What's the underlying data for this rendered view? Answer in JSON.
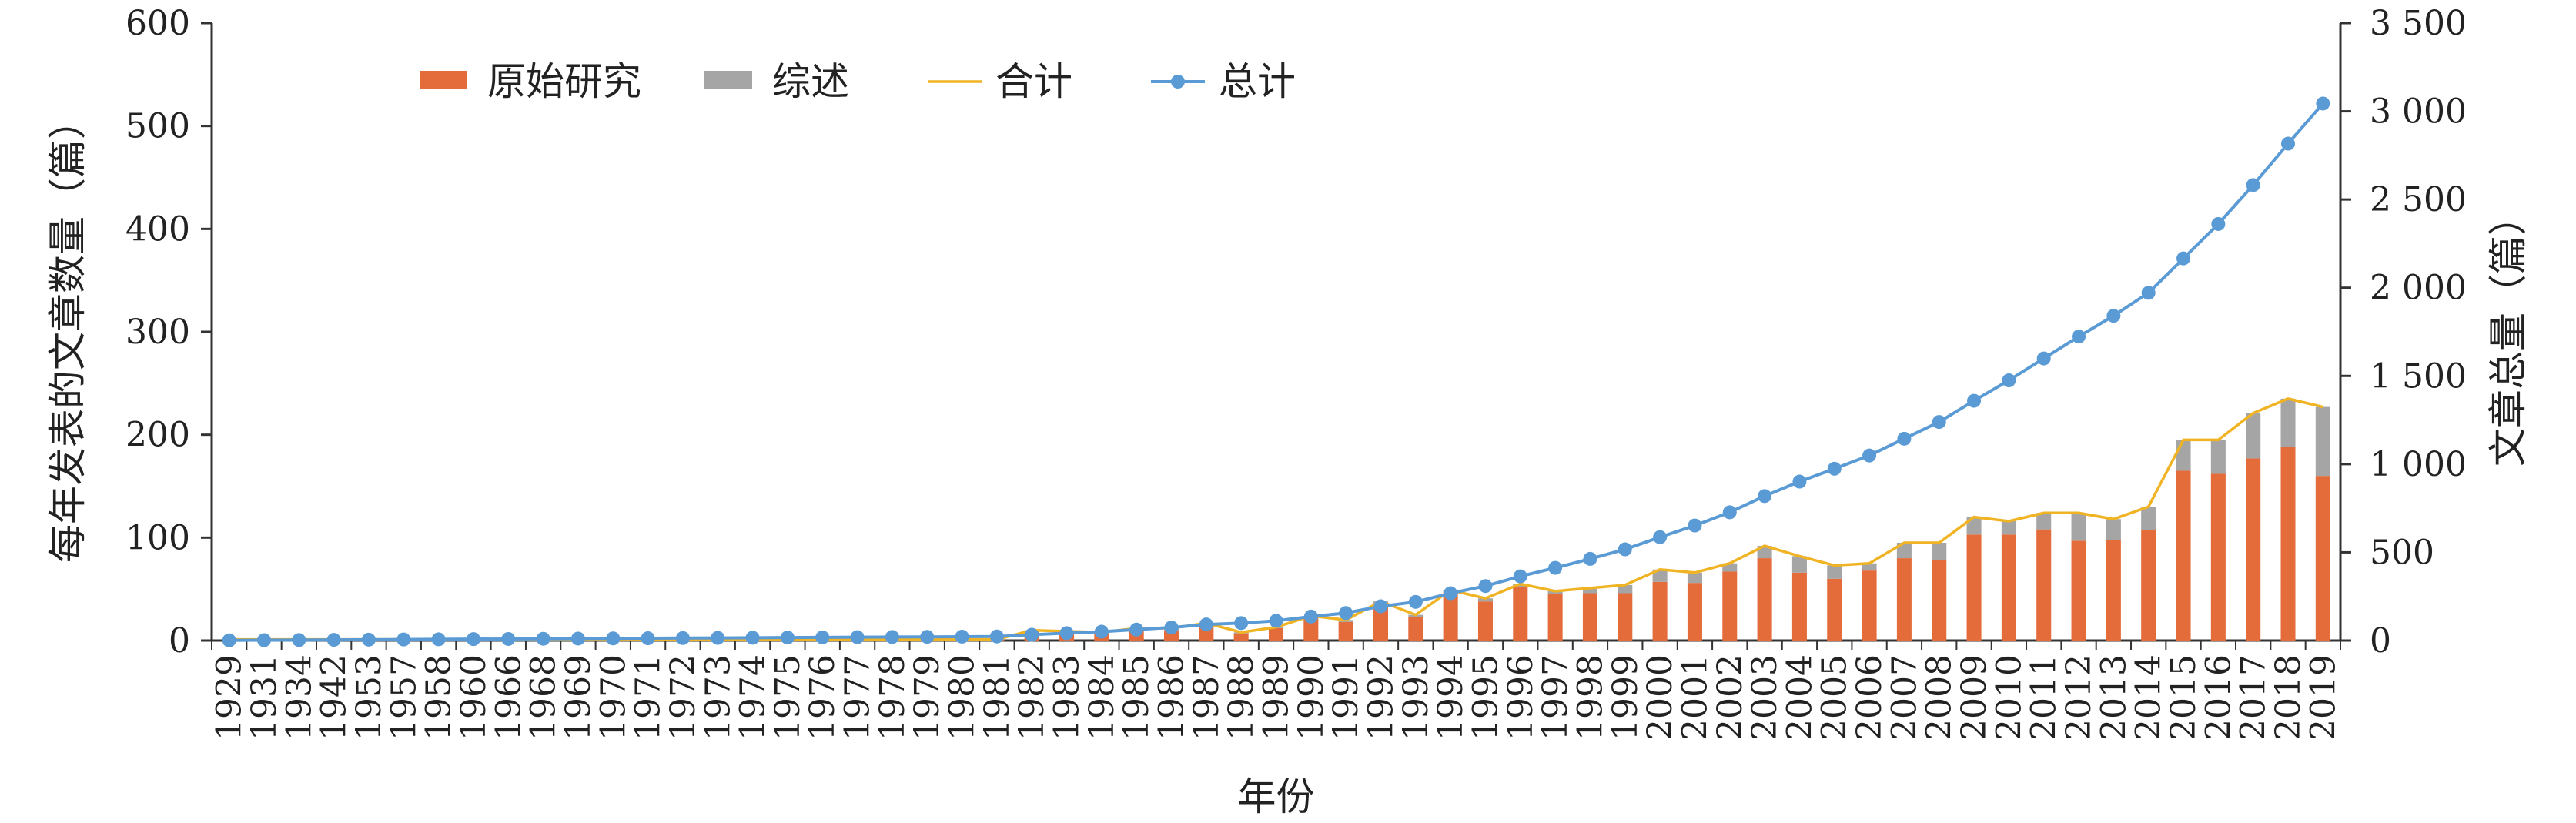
{
  "chart_data": {
    "type": "bar",
    "xlabel": "年份",
    "ylabel": "每年发表的文章数量（篇）",
    "y2label": "文章总量（篇）",
    "ylim": [
      0,
      600
    ],
    "y2lim": [
      0,
      3500
    ],
    "yticks": [
      "0",
      "100",
      "200",
      "300",
      "400",
      "500",
      "600"
    ],
    "y2ticks": [
      "0",
      "500",
      "1 000",
      "1 500",
      "2 000",
      "2 500",
      "3 000",
      "3 500"
    ],
    "legend_position": "top-left",
    "categories": [
      "1929",
      "1931",
      "1934",
      "1942",
      "1953",
      "1957",
      "1958",
      "1960",
      "1966",
      "1968",
      "1969",
      "1970",
      "1971",
      "1972",
      "1973",
      "1974",
      "1975",
      "1976",
      "1977",
      "1978",
      "1979",
      "1980",
      "1981",
      "1982",
      "1983",
      "1984",
      "1985",
      "1986",
      "1987",
      "1988",
      "1989",
      "1990",
      "1991",
      "1992",
      "1993",
      "1994",
      "1995",
      "1996",
      "1997",
      "1998",
      "1999",
      "2000",
      "2001",
      "2002",
      "2003",
      "2004",
      "2005",
      "2006",
      "2007",
      "2008",
      "2009",
      "2010",
      "2011",
      "2012",
      "2013",
      "2014",
      "2015",
      "2016",
      "2017",
      "2018",
      "2019"
    ],
    "series": [
      {
        "name": "原始研究",
        "type": "bar",
        "axis": "left",
        "color": "#E46C3A",
        "values": [
          1,
          1,
          1,
          1,
          1,
          1,
          1,
          1,
          1,
          1,
          1,
          1,
          1,
          1,
          1,
          1,
          1,
          1,
          1,
          1,
          1,
          1,
          1,
          9,
          8,
          7,
          10,
          10,
          16,
          7,
          12,
          22,
          18,
          36,
          23,
          47,
          38,
          52,
          45,
          46,
          46,
          57,
          56,
          67,
          80,
          66,
          60,
          68,
          80,
          78,
          103,
          103,
          108,
          97,
          98,
          107,
          165,
          162,
          177,
          188,
          160
        ]
      },
      {
        "name": "综述",
        "type": "bar",
        "axis": "left",
        "color": "#A5A5A5",
        "values": [
          0,
          0,
          0,
          0,
          0,
          0,
          0,
          0,
          0,
          0,
          0,
          0,
          0,
          0,
          0,
          0,
          0,
          0,
          0,
          0,
          0,
          0,
          0,
          1,
          1,
          1,
          2,
          2,
          1,
          1,
          1,
          2,
          2,
          2,
          2,
          2,
          3,
          3,
          3,
          5,
          8,
          12,
          10,
          8,
          12,
          16,
          13,
          7,
          15,
          17,
          17,
          13,
          16,
          27,
          20,
          23,
          30,
          33,
          44,
          47,
          67
        ]
      },
      {
        "name": "合计",
        "type": "line",
        "axis": "left",
        "color": "#F0B323",
        "values": [
          1,
          1,
          1,
          1,
          1,
          1,
          1,
          1,
          1,
          1,
          1,
          1,
          1,
          1,
          1,
          1,
          1,
          1,
          1,
          1,
          1,
          1,
          1,
          10,
          9,
          8,
          12,
          12,
          17,
          8,
          13,
          24,
          20,
          38,
          25,
          49,
          41,
          55,
          48,
          51,
          54,
          69,
          66,
          75,
          92,
          82,
          73,
          75,
          95,
          95,
          120,
          116,
          124,
          124,
          118,
          130,
          195,
          195,
          221,
          235,
          227
        ]
      },
      {
        "name": "总计",
        "type": "line",
        "axis": "right",
        "color": "#5B9BD5",
        "values": [
          1,
          2,
          3,
          4,
          5,
          6,
          7,
          8,
          9,
          10,
          11,
          12,
          13,
          14,
          15,
          16,
          17,
          18,
          19,
          20,
          21,
          22,
          23,
          33,
          42,
          50,
          62,
          74,
          91,
          99,
          112,
          136,
          156,
          194,
          219,
          268,
          309,
          364,
          412,
          463,
          517,
          586,
          652,
          727,
          819,
          901,
          974,
          1049,
          1144,
          1239,
          1359,
          1475,
          1599,
          1723,
          1841,
          1971,
          2166,
          2361,
          2582,
          2817,
          3044
        ]
      }
    ]
  }
}
